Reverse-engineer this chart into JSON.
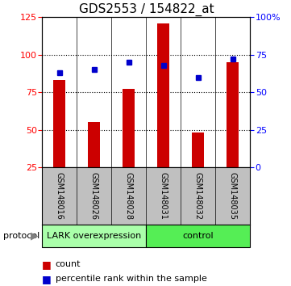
{
  "title": "GDS2553 / 154822_at",
  "samples": [
    "GSM148016",
    "GSM148026",
    "GSM148028",
    "GSM148031",
    "GSM148032",
    "GSM148035"
  ],
  "counts": [
    83,
    55,
    77,
    121,
    48,
    95
  ],
  "percentile_ranks": [
    63,
    65,
    70,
    68,
    60,
    72
  ],
  "ylim_left": [
    25,
    125
  ],
  "ylim_right": [
    0,
    100
  ],
  "left_ticks": [
    25,
    50,
    75,
    100,
    125
  ],
  "right_ticks": [
    0,
    25,
    50,
    75,
    100
  ],
  "right_tick_labels": [
    "0",
    "25",
    "50",
    "75",
    "100%"
  ],
  "bar_color": "#cc0000",
  "dot_color": "#0000cc",
  "group1_label": "LARK overexpression",
  "group2_label": "control",
  "group1_color": "#aaffaa",
  "group2_color": "#55ee55",
  "sample_bg_color": "#c0c0c0",
  "protocol_label": "protocol",
  "legend_count_label": "count",
  "legend_percentile_label": "percentile rank within the sample",
  "background_color": "#ffffff",
  "bar_width": 0.35,
  "title_fontsize": 11,
  "tick_fontsize": 8,
  "sample_fontsize": 7,
  "legend_fontsize": 8,
  "proto_fontsize": 8
}
